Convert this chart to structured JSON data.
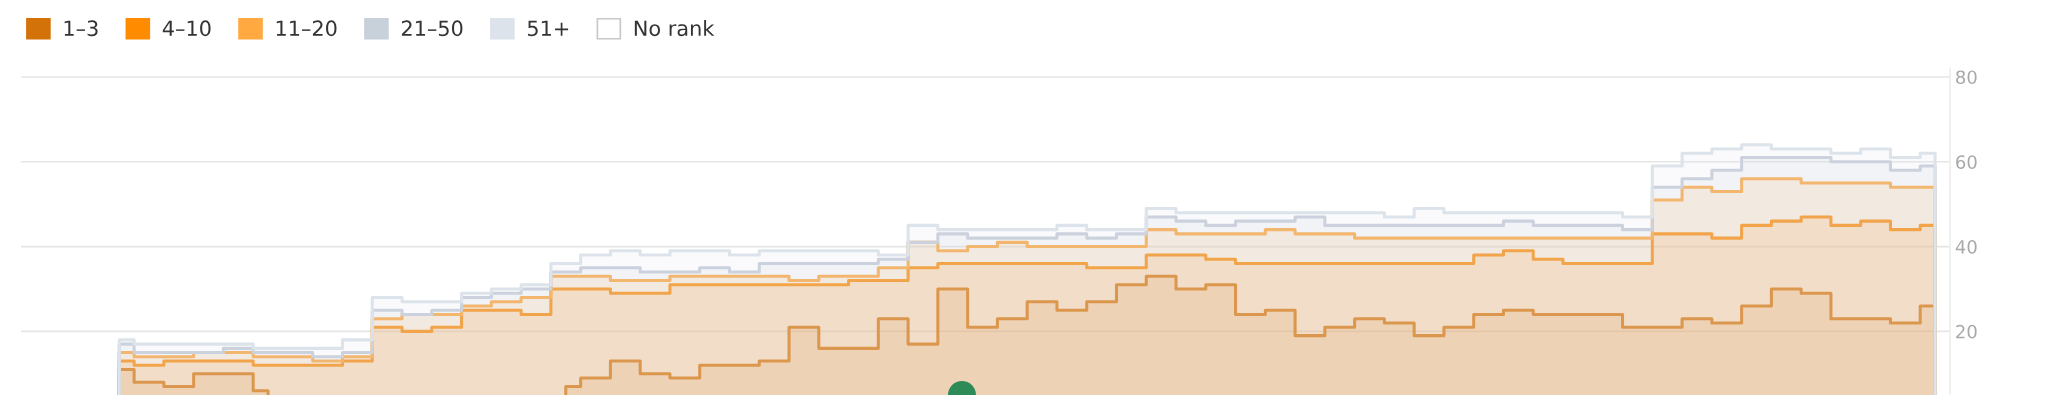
{
  "chart_data": {
    "type": "area",
    "categories": [
      null,
      null,
      null,
      null,
      null,
      null,
      null,
      null,
      null,
      null,
      null,
      null,
      null,
      null,
      null,
      null,
      null,
      null,
      null,
      null,
      null,
      null,
      null,
      null,
      null,
      null,
      null,
      null,
      null,
      null,
      null,
      null,
      null,
      null,
      null,
      null,
      null,
      null,
      null,
      null,
      null,
      null,
      null,
      null,
      null,
      null,
      null,
      null,
      null,
      null,
      null,
      null,
      null,
      null,
      null,
      null,
      null,
      null,
      null,
      null,
      null,
      null
    ],
    "ylim": [
      5,
      82
    ],
    "yticks": [
      20,
      40,
      60,
      80
    ],
    "grid": "y",
    "legend": "top left",
    "tick_labels": "y",
    "line_style": "solid",
    "series": [
      {
        "name": "1–3",
        "color": "#d4720a",
        "values": [
          11,
          8,
          7,
          10,
          10,
          6,
          null,
          null,
          null,
          null,
          null,
          null,
          null,
          null,
          null,
          7,
          9,
          13,
          10,
          9,
          12,
          12,
          13,
          21,
          16,
          16,
          23,
          17,
          30,
          21,
          23,
          27,
          25,
          27,
          31,
          33,
          30,
          31,
          24,
          25,
          19,
          21,
          23,
          22,
          19,
          21,
          24,
          25,
          24,
          24,
          24,
          21,
          21,
          23,
          22,
          26,
          30,
          29,
          23,
          23,
          22,
          26
        ]
      },
      {
        "name": "4–10",
        "color": "#ff8c00",
        "values": [
          13,
          12,
          13,
          13,
          13,
          12,
          12,
          12,
          13,
          21,
          20,
          21,
          25,
          25,
          24,
          30,
          30,
          29,
          29,
          31,
          31,
          31,
          31,
          31,
          31,
          32,
          32,
          35,
          36,
          36,
          36,
          36,
          36,
          35,
          35,
          38,
          38,
          37,
          36,
          36,
          36,
          36,
          36,
          36,
          36,
          36,
          38,
          39,
          37,
          36,
          36,
          36,
          43,
          43,
          42,
          45,
          46,
          47,
          45,
          46,
          44,
          45
        ]
      },
      {
        "name": "11–20",
        "color": "#ffa940",
        "values": [
          15,
          14,
          14,
          15,
          15,
          14,
          14,
          13,
          14,
          23,
          24,
          24,
          26,
          27,
          28,
          33,
          33,
          32,
          32,
          33,
          33,
          33,
          33,
          32,
          33,
          33,
          35,
          41,
          39,
          40,
          41,
          40,
          40,
          40,
          40,
          44,
          43,
          43,
          43,
          44,
          43,
          43,
          42,
          42,
          42,
          42,
          42,
          42,
          42,
          42,
          42,
          42,
          51,
          54,
          53,
          56,
          56,
          55,
          55,
          55,
          54,
          54
        ]
      },
      {
        "name": "21–50",
        "color": "#c8d0da",
        "values": [
          17,
          15,
          15,
          15,
          16,
          15,
          15,
          14,
          15,
          25,
          24,
          25,
          28,
          29,
          30,
          34,
          35,
          35,
          34,
          34,
          35,
          34,
          36,
          36,
          36,
          36,
          37,
          41,
          43,
          42,
          42,
          42,
          43,
          42,
          43,
          47,
          46,
          45,
          46,
          46,
          47,
          45,
          45,
          45,
          45,
          45,
          45,
          46,
          45,
          45,
          45,
          44,
          54,
          56,
          58,
          61,
          61,
          61,
          60,
          60,
          58,
          59
        ]
      },
      {
        "name": "51+",
        "color": "#dde3ea",
        "values": [
          18,
          17,
          17,
          17,
          17,
          16,
          16,
          16,
          18,
          28,
          27,
          27,
          29,
          30,
          31,
          36,
          38,
          39,
          38,
          39,
          39,
          38,
          39,
          39,
          39,
          39,
          38,
          45,
          44,
          44,
          44,
          44,
          45,
          44,
          44,
          49,
          48,
          48,
          48,
          48,
          48,
          48,
          48,
          47,
          49,
          48,
          48,
          48,
          48,
          48,
          48,
          47,
          59,
          62,
          63,
          64,
          63,
          63,
          62,
          63,
          61,
          62
        ]
      },
      {
        "name": "No rank",
        "color": "#ffffff",
        "values": [
          null,
          null,
          null,
          null,
          null,
          null,
          null,
          null,
          null,
          null,
          null,
          null,
          null,
          null,
          null,
          null,
          null,
          null,
          null,
          null,
          null,
          null,
          null,
          null,
          null,
          null,
          null,
          null,
          null,
          null,
          null,
          null,
          null,
          null,
          null,
          null,
          null,
          null,
          null,
          null,
          null,
          null,
          null,
          null,
          null,
          null,
          null,
          null,
          null,
          null,
          null,
          null,
          null,
          null,
          null,
          null,
          null,
          null,
          null,
          null,
          null,
          null
        ]
      }
    ]
  }
}
